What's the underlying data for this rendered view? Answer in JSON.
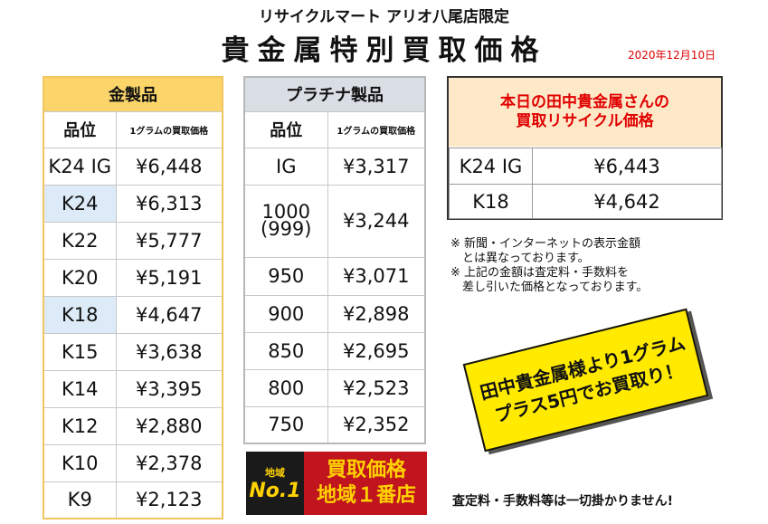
{
  "store_name": "リサイクルマート アリオ八尾店限定",
  "title": "貴金属特別買取価格",
  "date": "2020年12月10日",
  "gold": {
    "header": "金製品",
    "col_grade": "品位",
    "col_price": "1グラムの買取価格",
    "rows": [
      {
        "grade": "K24 IG",
        "price": "¥6,448"
      },
      {
        "grade": "K24",
        "price": "¥6,313"
      },
      {
        "grade": "K22",
        "price": "¥5,777"
      },
      {
        "grade": "K20",
        "price": "¥5,191"
      },
      {
        "grade": "K18",
        "price": "¥4,647"
      },
      {
        "grade": "K15",
        "price": "¥3,638"
      },
      {
        "grade": "K14",
        "price": "¥3,395"
      },
      {
        "grade": "K12",
        "price": "¥2,880"
      },
      {
        "grade": "K10",
        "price": "¥2,378"
      },
      {
        "grade": "K9",
        "price": "¥2,123"
      }
    ]
  },
  "platinum": {
    "header": "プラチナ製品",
    "col_grade": "品位",
    "col_price": "1グラムの買取価格",
    "rows": [
      {
        "grade": "IG",
        "price": "¥3,317"
      },
      {
        "grade": "1000",
        "grade_sub": "(999)",
        "price": "¥3,244"
      },
      {
        "grade": "950",
        "price": "¥3,071"
      },
      {
        "grade": "900",
        "price": "¥2,898"
      },
      {
        "grade": "850",
        "price": "¥2,695"
      },
      {
        "grade": "800",
        "price": "¥2,523"
      },
      {
        "grade": "750",
        "price": "¥2,352"
      }
    ]
  },
  "tanaka": {
    "heading_line1": "本日の田中貴金属さんの",
    "heading_line2": "買取リサイクル価格",
    "rows": [
      {
        "grade": "K24 IG",
        "price": "¥6,443"
      },
      {
        "grade": "K18",
        "price": "¥4,642"
      }
    ]
  },
  "notes": [
    "※ 新聞・インターネットの表示金額",
    "　とは異なっております。",
    "※ 上記の金額は査定料・手数料を",
    "　差し引いた価格となっております。"
  ],
  "promo": {
    "line1": "田中貴金属様より1グラム",
    "line2": "プラス5円でお買取り！"
  },
  "badge": {
    "region": "地域",
    "no1": "No.1",
    "line1": "買取価格",
    "line2": "地域１番店"
  },
  "footer": "査定料・手数料等は一切掛かりません!",
  "colors": {
    "gold_header": "#fbd56a",
    "gold_border": "#f2c560",
    "platinum_header": "#d9dde4",
    "highlight": "#dcebf7",
    "tanaka_header_bg": "#fde9c8",
    "tanaka_text": "#e00000",
    "promo_bg": "#ffea00",
    "badge_red": "#c0141e",
    "badge_gold": "#ffd200"
  }
}
